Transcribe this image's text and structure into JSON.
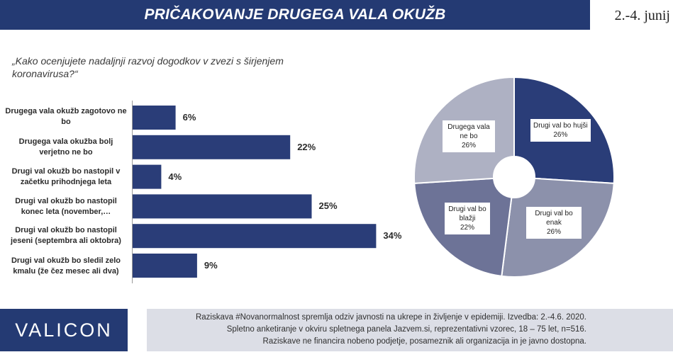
{
  "header": {
    "title": "PRIČAKOVANJE DRUGEGA VALA OKUŽB",
    "date": "2.-4. junij"
  },
  "question": "„Kako ocenjujete nadaljnji razvoj dogodkov v zvezi s širjenjem koronavirusa?“",
  "colors": {
    "brand_dark": "#243a73",
    "bar": "#2a3d78",
    "footer_bg": "#dcdee6",
    "pie": [
      "#2a3d78",
      "#8c91ab",
      "#6d7397",
      "#aeb1c3"
    ]
  },
  "chart_data": [
    {
      "type": "bar",
      "orientation": "horizontal",
      "categories": [
        "Drugega vala okužb zagotovo ne bo",
        "Drugega vala okužba bolj verjetno ne bo",
        "Drugi val okužb bo nastopil v začetku prihodnjega leta",
        "Drugi val okužb bo nastopil konec leta (november,…",
        "Drugi val okužb bo nastopil jeseni (septembra ali oktobra)",
        "Drugi val okužb bo sledil zelo kmalu (že čez mesec ali dva)"
      ],
      "values": [
        6,
        22,
        4,
        25,
        34,
        9
      ],
      "value_labels": [
        "6%",
        "22%",
        "4%",
        "25%",
        "34%",
        "9%"
      ],
      "unit": "%"
    },
    {
      "type": "pie",
      "style": "donut",
      "slices": [
        {
          "label": "Drugi val bo hujši",
          "value": 26,
          "value_label": "26%"
        },
        {
          "label": "Drugi val bo enak",
          "value": 26,
          "value_label": "26%"
        },
        {
          "label": "Drugi val bo blažji",
          "value": 22,
          "value_label": "22%"
        },
        {
          "label": "Drugega vala ne bo",
          "value": 26,
          "value_label": "26%"
        }
      ]
    }
  ],
  "footer": {
    "logo": "VALICON",
    "lines": [
      "Raziskava #Novanormalnost spremlja odziv javnosti na ukrepe in življenje v epidemiji. Izvedba: 2.-4.6. 2020.",
      "Spletno anketiranje v okviru spletnega panela Jazvem.si, reprezentativni vzorec, 18 – 75 let, n=516.",
      "Raziskave ne financira nobeno podjetje, posameznik ali organizacija in je javno dostopna."
    ]
  }
}
